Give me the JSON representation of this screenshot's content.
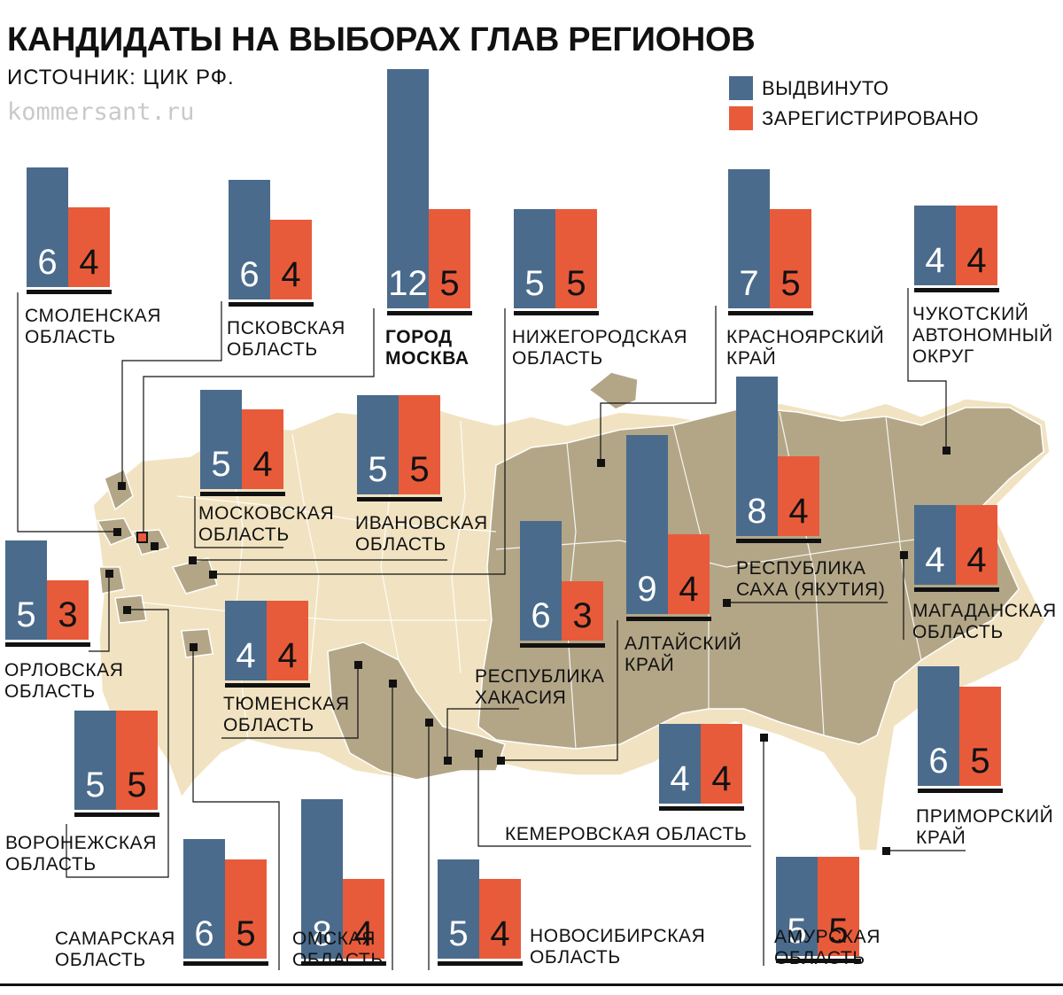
{
  "title": "КАНДИДАТЫ НА ВЫБОРАХ ГЛАВ РЕГИОНОВ",
  "source": "ИСТОЧНИК: ЦИК РФ.",
  "site": "kommersant.ru",
  "colors": {
    "nominated": "#4a6b8c",
    "registered": "#e85b3a",
    "map_land": "#b3a687",
    "map_light": "#f1e3c1",
    "ink": "#111111"
  },
  "legend": {
    "nominated": "ВЫДВИНУТО",
    "registered": "ЗАРЕГИСТРИРОВАНО"
  },
  "chart_data": {
    "type": "bar",
    "series": [
      {
        "name": "ВЫДВИНУТО"
      },
      {
        "name": "ЗАРЕГИСТРИРОВАНО"
      }
    ],
    "regions": [
      {
        "label": "СМОЛЕНСКАЯ\nОБЛАСТЬ",
        "nominated": 6,
        "registered": 4
      },
      {
        "label": "ПСКОВСКАЯ\nОБЛАСТЬ",
        "nominated": 6,
        "registered": 4
      },
      {
        "label": "ГОРОД\nМОСКВА",
        "nominated": 12,
        "registered": 5
      },
      {
        "label": "НИЖЕГОРОДСКАЯ\nОБЛАСТЬ",
        "nominated": 5,
        "registered": 5
      },
      {
        "label": "КРАСНОЯРСКИЙ\nКРАЙ",
        "nominated": 7,
        "registered": 5
      },
      {
        "label": "ЧУКОТСКИЙ\nАВТОНОМНЫЙ\nОКРУГ",
        "nominated": 4,
        "registered": 4
      },
      {
        "label": "МОСКОВСКАЯ\nОБЛАСТЬ",
        "nominated": 5,
        "registered": 4
      },
      {
        "label": "ИВАНОВСКАЯ\nОБЛАСТЬ",
        "nominated": 5,
        "registered": 5
      },
      {
        "label": "РЕСПУБЛИКА\nСАХА (ЯКУТИЯ)",
        "nominated": 8,
        "registered": 4
      },
      {
        "label": "МАГАДАНСКАЯ\nОБЛАСТЬ",
        "nominated": 4,
        "registered": 4
      },
      {
        "label": "ОРЛОВСКАЯ\nОБЛАСТЬ",
        "nominated": 5,
        "registered": 3
      },
      {
        "label": "ТЮМЕНСКАЯ\nОБЛАСТЬ",
        "nominated": 4,
        "registered": 4
      },
      {
        "label": "РЕСПУБЛИКА\nХАКАСИЯ",
        "nominated": 6,
        "registered": 3
      },
      {
        "label": "АЛТАЙСКИЙ\nКРАЙ",
        "nominated": 9,
        "registered": 4
      },
      {
        "label": "ВОРОНЕЖСКАЯ\nОБЛАСТЬ",
        "nominated": 5,
        "registered": 5
      },
      {
        "label": "КЕМЕРОВСКАЯ ОБЛАСТЬ",
        "nominated": 4,
        "registered": 4
      },
      {
        "label": "ПРИМОРСКИЙ\nКРАЙ",
        "nominated": 6,
        "registered": 5
      },
      {
        "label": "САМАРСКАЯ\nОБЛАСТЬ",
        "nominated": 6,
        "registered": 5
      },
      {
        "label": "ОМСКАЯ\nОБЛАСТЬ",
        "nominated": 8,
        "registered": 4
      },
      {
        "label": "НОВОСИБИРСКАЯ\nОБЛАСТЬ",
        "nominated": 5,
        "registered": 4
      },
      {
        "label": "АМУРСКАЯ\nОБЛАСТЬ",
        "nominated": 5,
        "registered": 5
      }
    ]
  }
}
